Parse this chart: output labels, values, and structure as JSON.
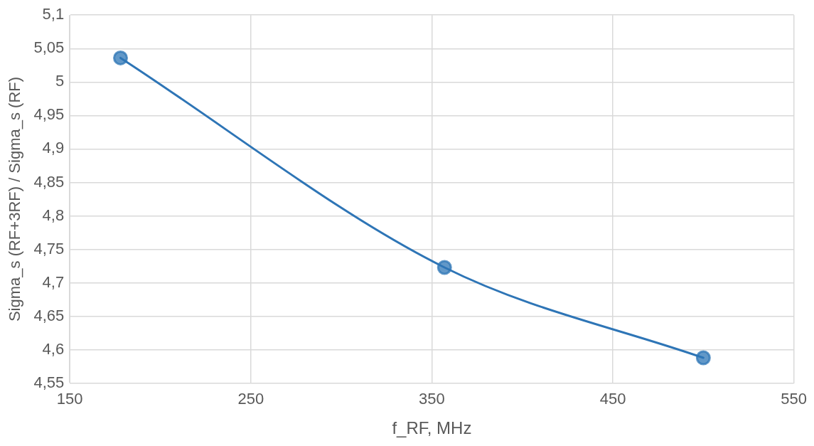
{
  "chart_data": {
    "type": "line",
    "xlabel": "f_RF, MHz",
    "ylabel": "Sigma_s (RF+3RF) / Sigma_s (RF)",
    "x": [
      178,
      357,
      500
    ],
    "series": [
      {
        "color": "#2e75b6",
        "values": [
          5.036,
          4.723,
          4.588
        ]
      }
    ],
    "marker": "circle",
    "line_style": "solid",
    "grid": true,
    "legend": false,
    "xlim": [
      150,
      550
    ],
    "xticks": [
      150,
      250,
      350,
      450,
      550
    ],
    "ylim": [
      4.55,
      5.1
    ],
    "yticks": [
      {
        "value": 4.55,
        "label": "4,55"
      },
      {
        "value": 4.6,
        "label": "4,6"
      },
      {
        "value": 4.65,
        "label": "4,65"
      },
      {
        "value": 4.7,
        "label": "4,7"
      },
      {
        "value": 4.75,
        "label": "4,75"
      },
      {
        "value": 4.8,
        "label": "4,8"
      },
      {
        "value": 4.85,
        "label": "4,85"
      },
      {
        "value": 4.9,
        "label": "4,9"
      },
      {
        "value": 4.95,
        "label": "4,95"
      },
      {
        "value": 5,
        "label": "5"
      },
      {
        "value": 5.05,
        "label": "5,05"
      },
      {
        "value": 5.1,
        "label": "5,1"
      }
    ]
  }
}
